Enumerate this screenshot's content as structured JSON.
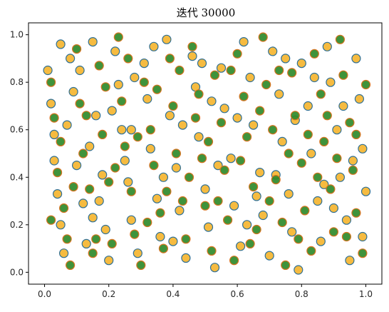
{
  "chart_data": {
    "type": "scatter",
    "title": "迭代 30000",
    "xlabel": "",
    "ylabel": "",
    "xlim": [
      -0.05,
      1.05
    ],
    "ylim": [
      -0.05,
      1.05
    ],
    "xticks": [
      "0.0",
      "0.2",
      "0.4",
      "0.6",
      "0.8",
      "1.0"
    ],
    "yticks": [
      "0.0",
      "0.2",
      "0.4",
      "0.6",
      "0.8",
      "1.0"
    ],
    "grid": false,
    "legend": "none",
    "colors": {
      "orange_fill": "#f5b530",
      "orange_edge": "#2e6f95",
      "green_fill": "#2f8a2a",
      "green_edge": "#d9731f"
    },
    "series": [
      {
        "marker": "orange-with-blue-edge",
        "points": [
          [
            0.01,
            0.85
          ],
          [
            0.02,
            0.71
          ],
          [
            0.03,
            0.58
          ],
          [
            0.04,
            0.33
          ],
          [
            0.05,
            0.2
          ],
          [
            0.06,
            0.08
          ],
          [
            0.08,
            0.9
          ],
          [
            0.09,
            0.76
          ],
          [
            0.1,
            0.45
          ],
          [
            0.12,
            0.29
          ],
          [
            0.13,
            0.12
          ],
          [
            0.15,
            0.97
          ],
          [
            0.16,
            0.66
          ],
          [
            0.18,
            0.41
          ],
          [
            0.19,
            0.18
          ],
          [
            0.2,
            0.05
          ],
          [
            0.22,
            0.93
          ],
          [
            0.23,
            0.79
          ],
          [
            0.24,
            0.6
          ],
          [
            0.26,
            0.38
          ],
          [
            0.27,
            0.22
          ],
          [
            0.29,
            0.08
          ],
          [
            0.31,
            0.88
          ],
          [
            0.32,
            0.73
          ],
          [
            0.33,
            0.52
          ],
          [
            0.35,
            0.31
          ],
          [
            0.36,
            0.15
          ],
          [
            0.38,
            0.98
          ],
          [
            0.39,
            0.66
          ],
          [
            0.41,
            0.44
          ],
          [
            0.42,
            0.26
          ],
          [
            0.44,
            0.06
          ],
          [
            0.46,
            0.91
          ],
          [
            0.47,
            0.78
          ],
          [
            0.48,
            0.57
          ],
          [
            0.5,
            0.35
          ],
          [
            0.51,
            0.19
          ],
          [
            0.53,
            0.02
          ],
          [
            0.55,
            0.86
          ],
          [
            0.56,
            0.69
          ],
          [
            0.58,
            0.48
          ],
          [
            0.59,
            0.28
          ],
          [
            0.61,
            0.11
          ],
          [
            0.62,
            0.97
          ],
          [
            0.64,
            0.82
          ],
          [
            0.65,
            0.62
          ],
          [
            0.67,
            0.42
          ],
          [
            0.68,
            0.24
          ],
          [
            0.7,
            0.07
          ],
          [
            0.71,
            0.93
          ],
          [
            0.73,
            0.75
          ],
          [
            0.74,
            0.55
          ],
          [
            0.76,
            0.33
          ],
          [
            0.77,
            0.17
          ],
          [
            0.79,
            0.01
          ],
          [
            0.8,
            0.88
          ],
          [
            0.82,
            0.7
          ],
          [
            0.83,
            0.5
          ],
          [
            0.85,
            0.3
          ],
          [
            0.86,
            0.13
          ],
          [
            0.88,
            0.95
          ],
          [
            0.89,
            0.8
          ],
          [
            0.91,
            0.6
          ],
          [
            0.92,
            0.4
          ],
          [
            0.94,
            0.22
          ],
          [
            0.95,
            0.05
          ],
          [
            0.97,
            0.9
          ],
          [
            0.98,
            0.73
          ],
          [
            0.99,
            0.52
          ],
          [
            1.0,
            0.34
          ],
          [
            0.03,
            0.47
          ],
          [
            0.07,
            0.62
          ],
          [
            0.11,
            0.85
          ],
          [
            0.14,
            0.53
          ],
          [
            0.17,
            0.3
          ],
          [
            0.21,
            0.68
          ],
          [
            0.25,
            0.47
          ],
          [
            0.28,
            0.82
          ],
          [
            0.34,
            0.95
          ],
          [
            0.37,
            0.4
          ],
          [
            0.43,
            0.62
          ],
          [
            0.49,
            0.88
          ],
          [
            0.54,
            0.45
          ],
          [
            0.6,
            0.65
          ],
          [
            0.66,
            0.32
          ],
          [
            0.72,
            0.41
          ],
          [
            0.78,
            0.64
          ],
          [
            0.84,
            0.82
          ],
          [
            0.9,
            0.27
          ],
          [
            0.96,
            0.47
          ],
          [
            0.05,
            0.96
          ],
          [
            0.15,
            0.23
          ],
          [
            0.27,
            0.6
          ],
          [
            0.4,
            0.13
          ],
          [
            0.52,
            0.72
          ],
          [
            0.63,
            0.2
          ],
          [
            0.75,
            0.9
          ],
          [
            0.87,
            0.37
          ],
          [
            0.93,
            0.7
          ],
          [
            0.99,
            0.15
          ]
        ]
      },
      {
        "marker": "green-with-orange-edge",
        "points": [
          [
            0.02,
            0.8
          ],
          [
            0.03,
            0.65
          ],
          [
            0.04,
            0.42
          ],
          [
            0.06,
            0.27
          ],
          [
            0.07,
            0.14
          ],
          [
            0.08,
            0.03
          ],
          [
            0.1,
            0.94
          ],
          [
            0.11,
            0.71
          ],
          [
            0.12,
            0.5
          ],
          [
            0.14,
            0.35
          ],
          [
            0.15,
            0.08
          ],
          [
            0.17,
            0.87
          ],
          [
            0.18,
            0.58
          ],
          [
            0.2,
            0.38
          ],
          [
            0.21,
            0.12
          ],
          [
            0.23,
            0.99
          ],
          [
            0.24,
            0.72
          ],
          [
            0.25,
            0.53
          ],
          [
            0.27,
            0.34
          ],
          [
            0.28,
            0.16
          ],
          [
            0.3,
            0.03
          ],
          [
            0.31,
            0.8
          ],
          [
            0.33,
            0.6
          ],
          [
            0.34,
            0.45
          ],
          [
            0.36,
            0.25
          ],
          [
            0.37,
            0.1
          ],
          [
            0.39,
            0.9
          ],
          [
            0.4,
            0.7
          ],
          [
            0.41,
            0.5
          ],
          [
            0.43,
            0.3
          ],
          [
            0.44,
            0.14
          ],
          [
            0.46,
            0.95
          ],
          [
            0.47,
            0.65
          ],
          [
            0.49,
            0.48
          ],
          [
            0.5,
            0.28
          ],
          [
            0.52,
            0.09
          ],
          [
            0.53,
            0.83
          ],
          [
            0.55,
            0.63
          ],
          [
            0.56,
            0.43
          ],
          [
            0.57,
            0.22
          ],
          [
            0.59,
            0.05
          ],
          [
            0.6,
            0.92
          ],
          [
            0.62,
            0.74
          ],
          [
            0.63,
            0.57
          ],
          [
            0.65,
            0.36
          ],
          [
            0.66,
            0.18
          ],
          [
            0.68,
            0.99
          ],
          [
            0.69,
            0.79
          ],
          [
            0.71,
            0.6
          ],
          [
            0.72,
            0.39
          ],
          [
            0.74,
            0.21
          ],
          [
            0.75,
            0.03
          ],
          [
            0.77,
            0.84
          ],
          [
            0.78,
            0.66
          ],
          [
            0.8,
            0.46
          ],
          [
            0.81,
            0.26
          ],
          [
            0.83,
            0.09
          ],
          [
            0.84,
            0.92
          ],
          [
            0.86,
            0.75
          ],
          [
            0.87,
            0.55
          ],
          [
            0.89,
            0.35
          ],
          [
            0.9,
            0.17
          ],
          [
            0.92,
            0.98
          ],
          [
            0.93,
            0.83
          ],
          [
            0.95,
            0.63
          ],
          [
            0.96,
            0.43
          ],
          [
            0.97,
            0.25
          ],
          [
            0.99,
            0.08
          ],
          [
            1.0,
            0.79
          ],
          [
            0.02,
            0.22
          ],
          [
            0.05,
            0.55
          ],
          [
            0.09,
            0.36
          ],
          [
            0.13,
            0.66
          ],
          [
            0.16,
            0.14
          ],
          [
            0.19,
            0.78
          ],
          [
            0.22,
            0.44
          ],
          [
            0.26,
            0.9
          ],
          [
            0.29,
            0.57
          ],
          [
            0.32,
            0.21
          ],
          [
            0.35,
            0.77
          ],
          [
            0.38,
            0.34
          ],
          [
            0.42,
            0.85
          ],
          [
            0.45,
            0.4
          ],
          [
            0.48,
            0.75
          ],
          [
            0.51,
            0.55
          ],
          [
            0.54,
            0.3
          ],
          [
            0.58,
            0.85
          ],
          [
            0.61,
            0.47
          ],
          [
            0.64,
            0.12
          ],
          [
            0.67,
            0.68
          ],
          [
            0.7,
            0.3
          ],
          [
            0.73,
            0.85
          ],
          [
            0.76,
            0.5
          ],
          [
            0.79,
            0.14
          ],
          [
            0.82,
            0.58
          ],
          [
            0.85,
            0.4
          ],
          [
            0.88,
            0.66
          ],
          [
            0.91,
            0.48
          ],
          [
            0.94,
            0.15
          ],
          [
            0.97,
            0.58
          ]
        ]
      }
    ]
  }
}
